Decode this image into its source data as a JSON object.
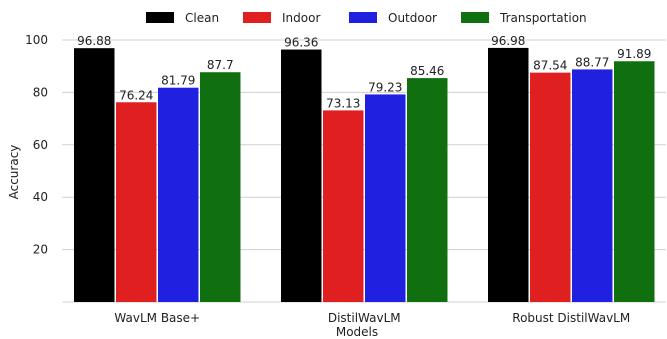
{
  "chart_data": {
    "type": "bar",
    "title": "",
    "xlabel": "Models",
    "ylabel": "Accuracy",
    "categories": [
      "WavLM Base+",
      "DistilWavLM",
      "Robust DistilWavLM"
    ],
    "series": [
      {
        "name": "Clean",
        "color": "#000000",
        "values": [
          96.88,
          96.36,
          96.98
        ]
      },
      {
        "name": "Indoor",
        "color": "#e02020",
        "values": [
          76.24,
          73.13,
          87.54
        ]
      },
      {
        "name": "Outdoor",
        "color": "#2020e0",
        "values": [
          81.79,
          79.23,
          88.77
        ]
      },
      {
        "name": "Transportation",
        "color": "#107010",
        "values": [
          87.7,
          85.46,
          91.89
        ]
      }
    ],
    "ylim": [
      0,
      100
    ],
    "yticks": [
      20,
      40,
      60,
      80,
      100
    ],
    "grid": true,
    "legend_position": "top"
  }
}
